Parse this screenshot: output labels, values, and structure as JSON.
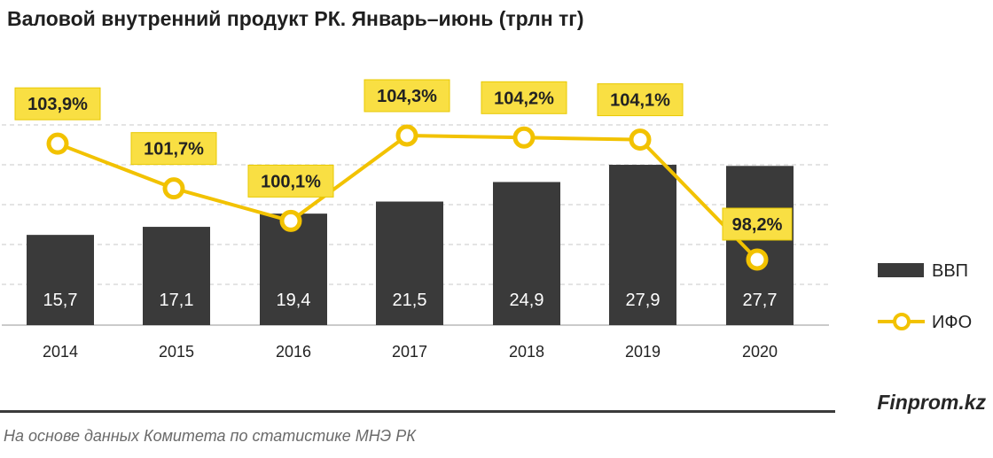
{
  "header": {
    "title": "Валовой внутренний продукт РК. Январь–июнь (трлн тг)"
  },
  "footer": {
    "brand": "Finprom.kz",
    "source": "На основе данных  Комитета по статистике МНЭ РК"
  },
  "colors": {
    "bar": "#3a3a3a",
    "line": "#f2c200",
    "label_bg": "#f9df43",
    "grid": "#c8c8c8"
  },
  "chart_data": {
    "type": "bar+line",
    "title": "Валовой внутренний продукт РК. Январь–июнь (трлн тг)",
    "categories": [
      "2014",
      "2015",
      "2016",
      "2017",
      "2018",
      "2019",
      "2020"
    ],
    "series": [
      {
        "name": "ВВП",
        "type": "bar",
        "values": [
          15.7,
          17.1,
          19.4,
          21.5,
          24.9,
          27.9,
          27.7
        ],
        "labels": [
          "15,7",
          "17,1",
          "19,4",
          "21,5",
          "24,9",
          "27,9",
          "27,7"
        ]
      },
      {
        "name": "ИФО",
        "type": "line",
        "values": [
          103.9,
          101.7,
          100.1,
          104.3,
          104.2,
          104.1,
          98.2
        ],
        "labels": [
          "103,9%",
          "101,7%",
          "100,1%",
          "104,3%",
          "104,2%",
          "104,1%",
          "98,2%"
        ]
      }
    ],
    "bar_ylim": [
      0,
      30
    ],
    "line_ylim": [
      94,
      109
    ],
    "grid": true,
    "legend_position": "right"
  }
}
